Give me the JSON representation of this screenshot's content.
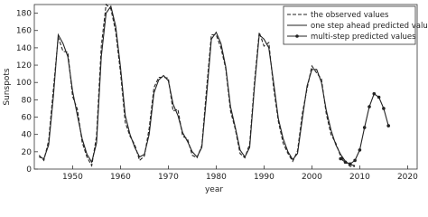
{
  "chart_data": {
    "type": "line",
    "x_label": "year",
    "y_label": "Sunspots",
    "x": [
      1943,
      1944,
      1945,
      1946,
      1947,
      1948,
      1949,
      1950,
      1951,
      1952,
      1953,
      1954,
      1955,
      1956,
      1957,
      1958,
      1959,
      1960,
      1961,
      1962,
      1963,
      1964,
      1965,
      1966,
      1967,
      1968,
      1969,
      1970,
      1971,
      1972,
      1973,
      1974,
      1975,
      1976,
      1977,
      1978,
      1979,
      1980,
      1981,
      1982,
      1983,
      1984,
      1985,
      1986,
      1987,
      1988,
      1989,
      1990,
      1991,
      1992,
      1993,
      1994,
      1995,
      1996,
      1997,
      1998,
      1999,
      2000,
      2001,
      2002,
      2003,
      2004,
      2005,
      2006,
      2007,
      2008,
      2009,
      2010,
      2011,
      2012,
      2013,
      2014,
      2015,
      2016
    ],
    "series": [
      {
        "name": "the observed values",
        "color": "#222222",
        "dash": true,
        "marker": false,
        "values": [
          16,
          10,
          33,
          93,
          152,
          136,
          135,
          84,
          69,
          31,
          14,
          4,
          38,
          142,
          190,
          185,
          159,
          112,
          54,
          38,
          28,
          10,
          15,
          47,
          94,
          106,
          106,
          105,
          67,
          69,
          38,
          35,
          16,
          13,
          27,
          93,
          155,
          155,
          140,
          116,
          67,
          46,
          18,
          13,
          29,
          100,
          158,
          142,
          146,
          94,
          55,
          30,
          18,
          9,
          21,
          64,
          93,
          119,
          111,
          104,
          64,
          40,
          30,
          15,
          8,
          3,
          3,
          null,
          null,
          null,
          null,
          null,
          null,
          null
        ]
      },
      {
        "name": "one step ahead predicted values",
        "color": "#222222",
        "dash": false,
        "marker": false,
        "values": [
          14,
          12,
          28,
          85,
          155,
          145,
          130,
          90,
          62,
          35,
          17,
          8,
          30,
          130,
          180,
          188,
          165,
          118,
          62,
          40,
          25,
          14,
          17,
          40,
          88,
          103,
          108,
          102,
          75,
          62,
          42,
          32,
          20,
          14,
          25,
          85,
          150,
          158,
          145,
          118,
          72,
          48,
          22,
          14,
          25,
          95,
          155,
          150,
          140,
          100,
          58,
          35,
          20,
          11,
          18,
          58,
          96,
          115,
          115,
          100,
          68,
          45,
          28,
          17,
          9,
          5,
          4,
          null,
          null,
          null,
          null,
          null,
          null,
          null
        ]
      },
      {
        "name": "multi-step predicted values",
        "color": "#222222",
        "dash": false,
        "marker": true,
        "values": [
          null,
          null,
          null,
          null,
          null,
          null,
          null,
          null,
          null,
          null,
          null,
          null,
          null,
          null,
          null,
          null,
          null,
          null,
          null,
          null,
          null,
          null,
          null,
          null,
          null,
          null,
          null,
          null,
          null,
          null,
          null,
          null,
          null,
          null,
          null,
          null,
          null,
          null,
          null,
          null,
          null,
          null,
          null,
          null,
          null,
          null,
          null,
          null,
          null,
          null,
          null,
          null,
          null,
          null,
          null,
          null,
          null,
          null,
          null,
          null,
          null,
          null,
          null,
          12,
          8,
          6,
          10,
          22,
          48,
          72,
          87,
          83,
          70,
          50
        ]
      }
    ],
    "xlim": [
      1942,
      2022
    ],
    "xticks": [
      1950,
      1960,
      1970,
      1980,
      1990,
      2000,
      2010,
      2020
    ],
    "ylim": [
      0,
      190
    ],
    "yticks": [
      0,
      20,
      40,
      60,
      80,
      100,
      120,
      140,
      160,
      180
    ],
    "legend": "upper right"
  }
}
